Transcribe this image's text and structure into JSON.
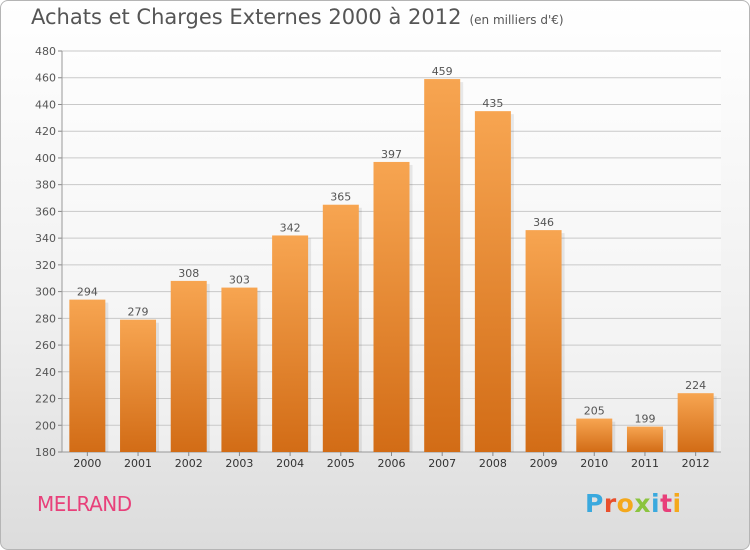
{
  "title": "Achats et Charges Externes 2000 à 2012",
  "unit": "(en milliers d'€)",
  "commune": "MELRAND",
  "logo": {
    "text": "Proxiti",
    "colors": [
      "#3aa9de",
      "#e94f2c",
      "#f4a81c",
      "#8bc43f",
      "#3aa9de",
      "#e8407a",
      "#f4a81c"
    ]
  },
  "colors": {
    "bar_top": "#f7a551",
    "bar_bottom": "#d26c16",
    "grid": "#c9c9c9",
    "text": "#555555",
    "commune": "#e8407a"
  },
  "chart_data": {
    "type": "bar",
    "categories": [
      "2000",
      "2001",
      "2002",
      "2003",
      "2004",
      "2005",
      "2006",
      "2007",
      "2008",
      "2009",
      "2010",
      "2011",
      "2012"
    ],
    "values": [
      294,
      279,
      308,
      303,
      342,
      365,
      397,
      459,
      435,
      346,
      205,
      199,
      224
    ],
    "ylim": [
      180,
      480
    ],
    "yticks": [
      180,
      200,
      220,
      240,
      260,
      280,
      300,
      320,
      340,
      360,
      380,
      400,
      420,
      440,
      460,
      480
    ],
    "grid": true
  }
}
